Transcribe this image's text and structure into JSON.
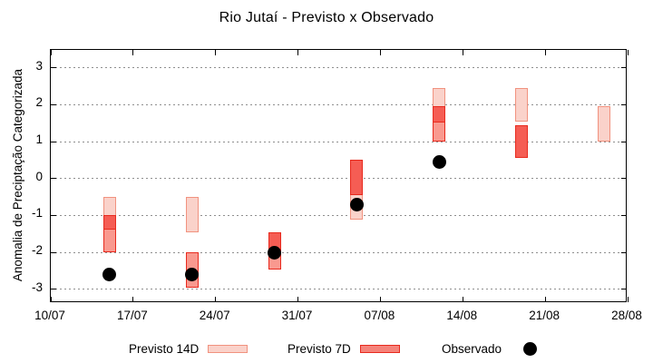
{
  "page": {
    "background": "#ffffff"
  },
  "chart_data": {
    "type": "interval-forecast-candlesticks-with-points",
    "title": "Rio Jutaí - Previsto x Observado",
    "ylabel": "Anomalia de Preciptação Categorizada",
    "xlabel": "",
    "grid": "horizontal-dotted",
    "legend_position": "bottom-center",
    "y_ticks": [
      3,
      2,
      1,
      0,
      -1,
      -2,
      -3
    ],
    "axis_range": [
      -3.37,
      3.48
    ],
    "x_span_days": 49,
    "x_ticks": [
      {
        "label": "10/07",
        "day": 0
      },
      {
        "label": "17/07",
        "day": 7
      },
      {
        "label": "24/07",
        "day": 14
      },
      {
        "label": "31/07",
        "day": 21
      },
      {
        "label": "07/08",
        "day": 28
      },
      {
        "label": "14/08",
        "day": 35
      },
      {
        "label": "21/08",
        "day": 42
      },
      {
        "label": "28/08",
        "day": 49
      }
    ],
    "clusters": [
      {
        "date": "15/07",
        "day": 5,
        "previsto_14d": {
          "high": -0.5,
          "low": -2.0
        },
        "previsto_7d": {
          "high": -1.0,
          "low": -2.0,
          "median": -1.4,
          "style": "split"
        },
        "observado": -2.6
      },
      {
        "date": "22/07",
        "day": 12,
        "previsto_14d": {
          "high": -0.5,
          "low": -1.45
        },
        "previsto_7d": {
          "high": -2.0,
          "low": -2.95,
          "style": "light"
        },
        "observado": -2.6
      },
      {
        "date": "29/07",
        "day": 19,
        "previsto_14d": null,
        "previsto_7d": {
          "high": -1.45,
          "low": -2.45,
          "median": -2.0,
          "style": "split"
        },
        "observado": -2.0
      },
      {
        "date": "05/08",
        "day": 26,
        "previsto_14d": {
          "high": 0.5,
          "low": -1.1
        },
        "previsto_7d": {
          "high": 0.5,
          "low": -0.45,
          "style": "dark"
        },
        "observado": -0.7
      },
      {
        "date": "12/08",
        "day": 33,
        "previsto_14d": {
          "high": 2.45,
          "low": 1.0
        },
        "previsto_7d": {
          "high": 1.95,
          "low": 1.0,
          "median": 1.5,
          "style": "split"
        },
        "observado": 0.45
      },
      {
        "date": "19/08",
        "day": 40,
        "previsto_14d": {
          "high": 2.45,
          "low": 1.55
        },
        "previsto_7d": {
          "high": 1.45,
          "low": 0.55,
          "style": "dark"
        },
        "observado": null
      },
      {
        "date": "26/08",
        "day": 47,
        "previsto_14d": {
          "high": 1.95,
          "low": 1.0
        },
        "previsto_7d": null,
        "observado": null
      }
    ],
    "legend": [
      {
        "label": "Previsto 14D",
        "marker": "box14"
      },
      {
        "label": "Previsto 7D",
        "marker": "box7"
      },
      {
        "label": "Observado",
        "marker": "dot"
      }
    ],
    "colors": {
      "previsto14d_fill": "#fad2ca",
      "previsto14d_border": "#f1927f",
      "previsto7d_dark": "#f55d54",
      "previsto7d_light": "#f9998f",
      "previsto7d_border": "#e82a1e",
      "legend_7d_fill": "#f5837a",
      "observado": "#000000",
      "grid": "#8f8f8f",
      "axis": "#000000"
    }
  }
}
